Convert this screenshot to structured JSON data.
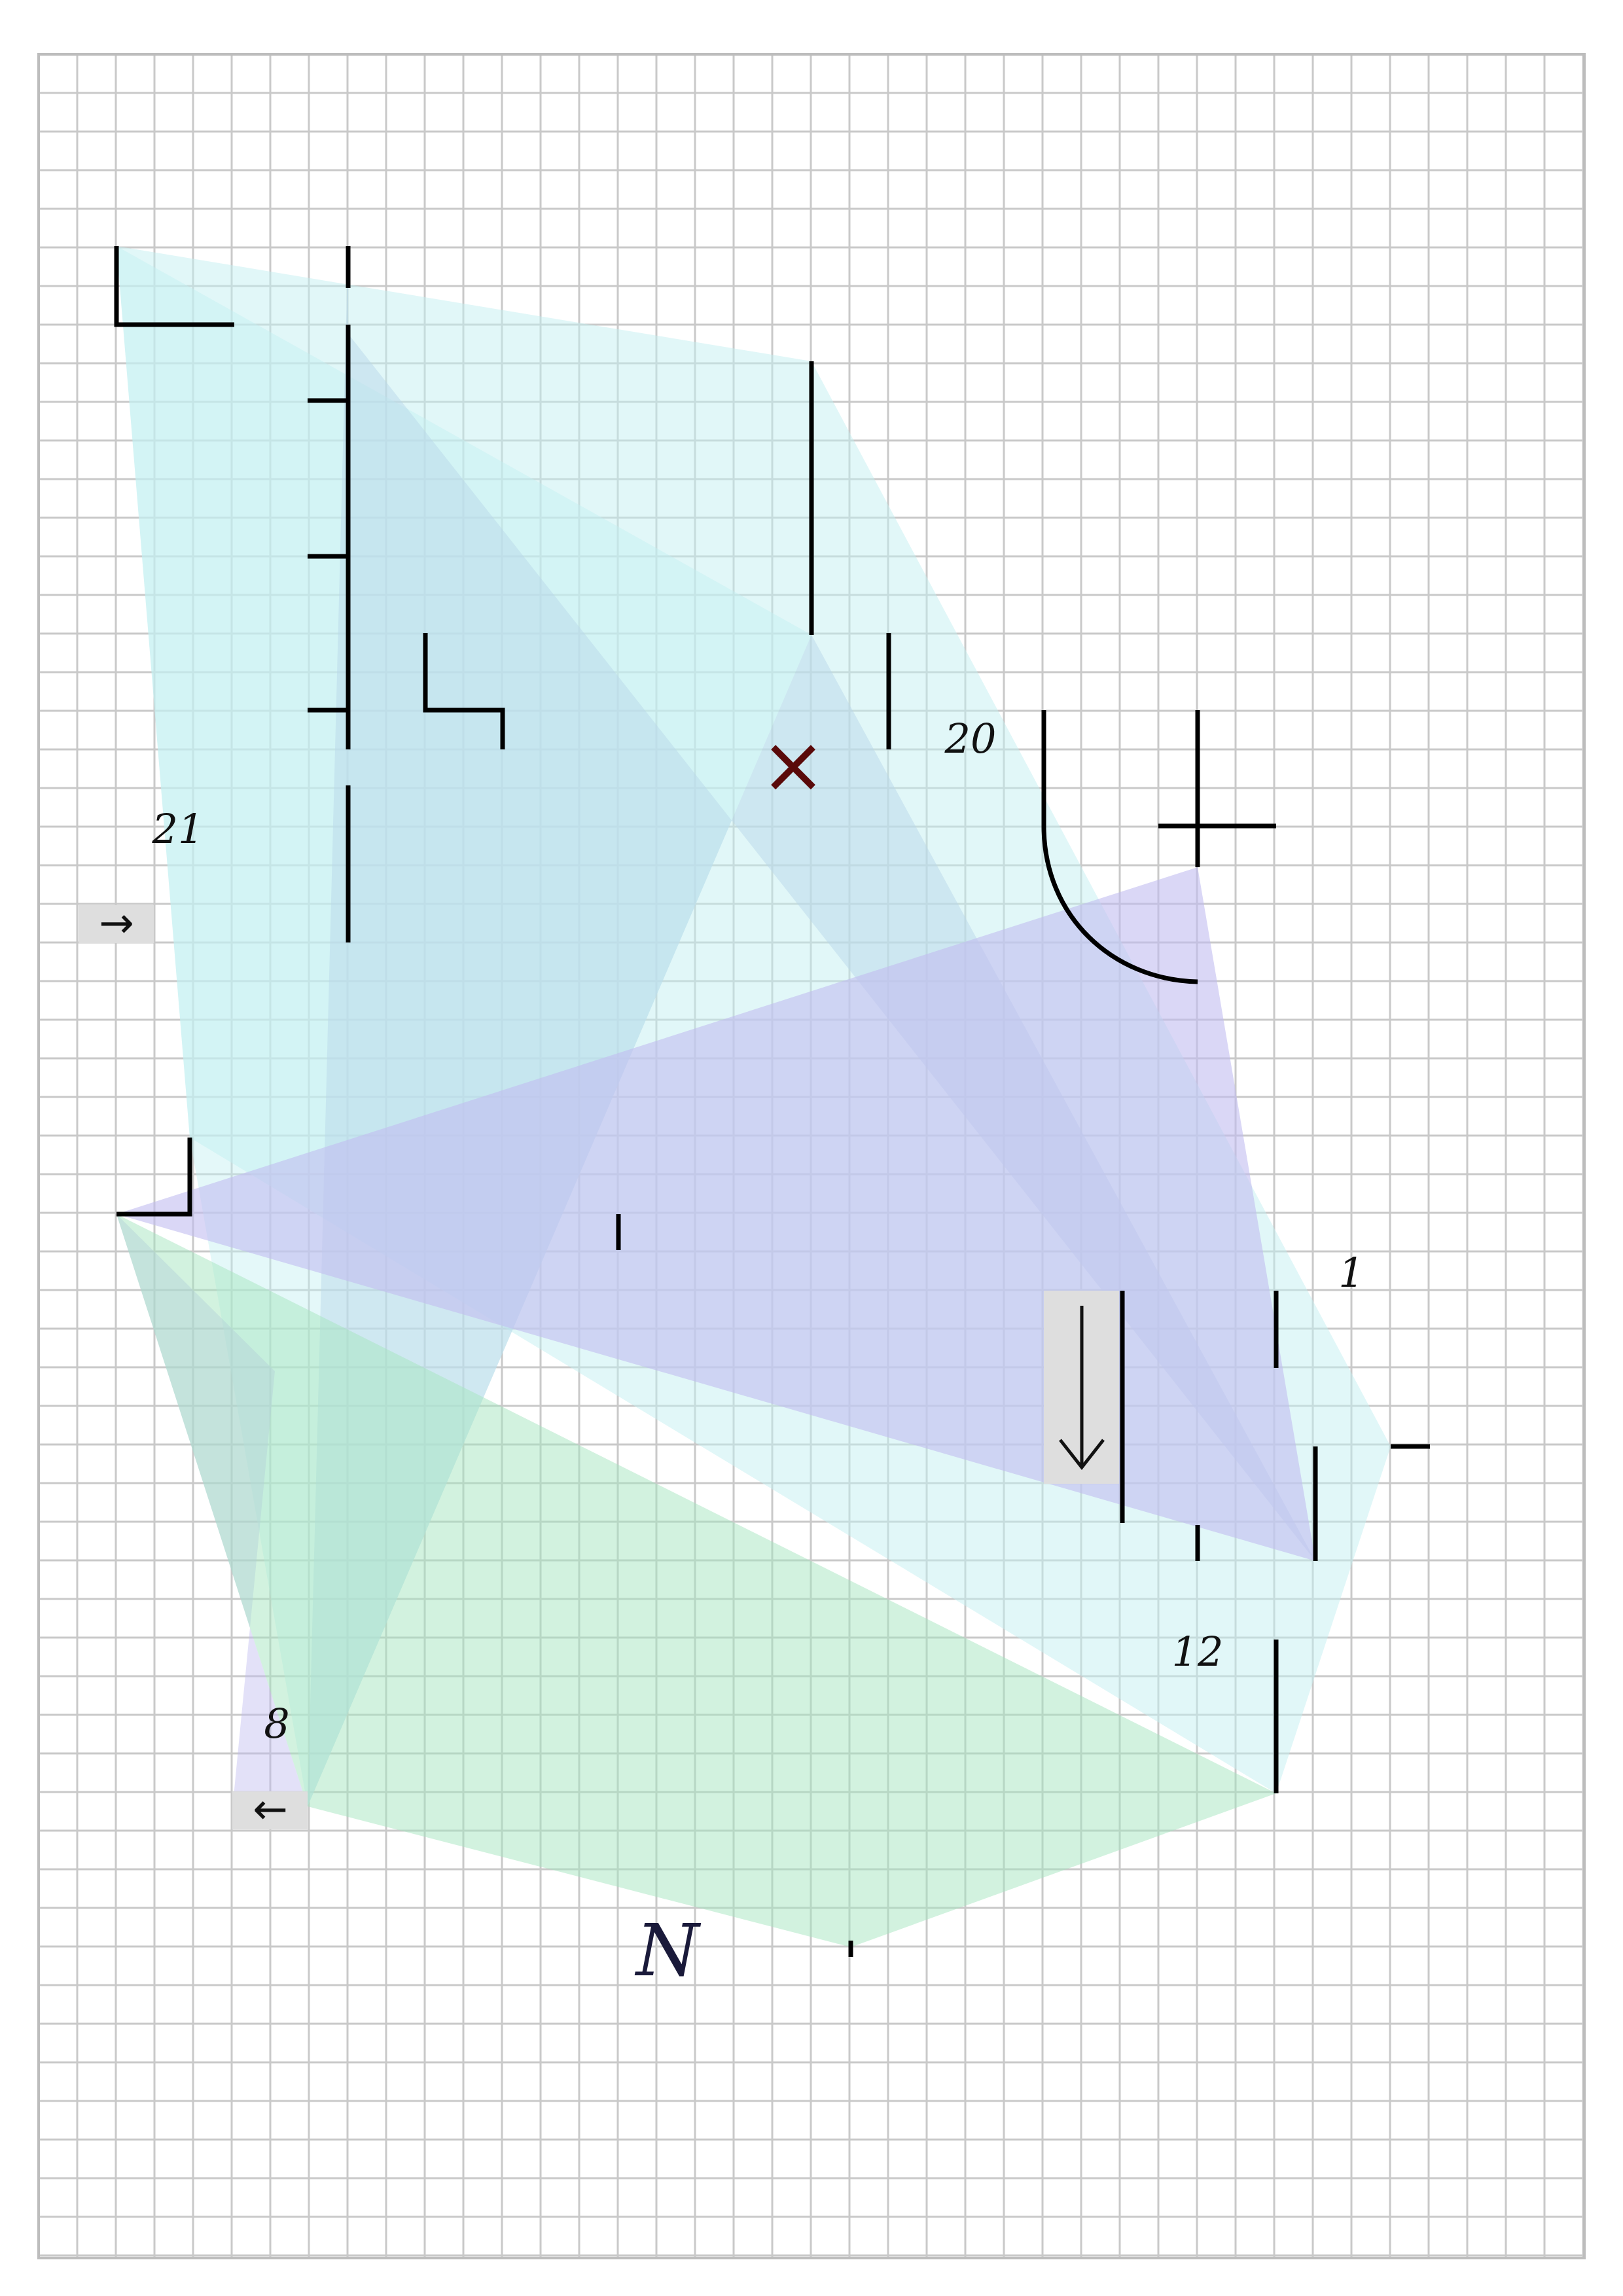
{
  "colors": {
    "grid": "#c9c9c9",
    "cyan_fill": "#c4f0f2",
    "blue_fill": "#b9d7ea",
    "violet_fill": "#c2bdf0",
    "green_fill": "#a6e6c0",
    "ink": "#000000",
    "mark_red": "#5a0a0a",
    "arrow_box": "#dedede"
  },
  "labels": {
    "n21": "21",
    "n20": "20",
    "n1": "1",
    "n12": "12",
    "n8": "8",
    "letter_n": "N"
  },
  "icons": {
    "arrow_right": "→",
    "arrow_left": "←",
    "arrow_down": "↓",
    "x_mark": "×"
  }
}
